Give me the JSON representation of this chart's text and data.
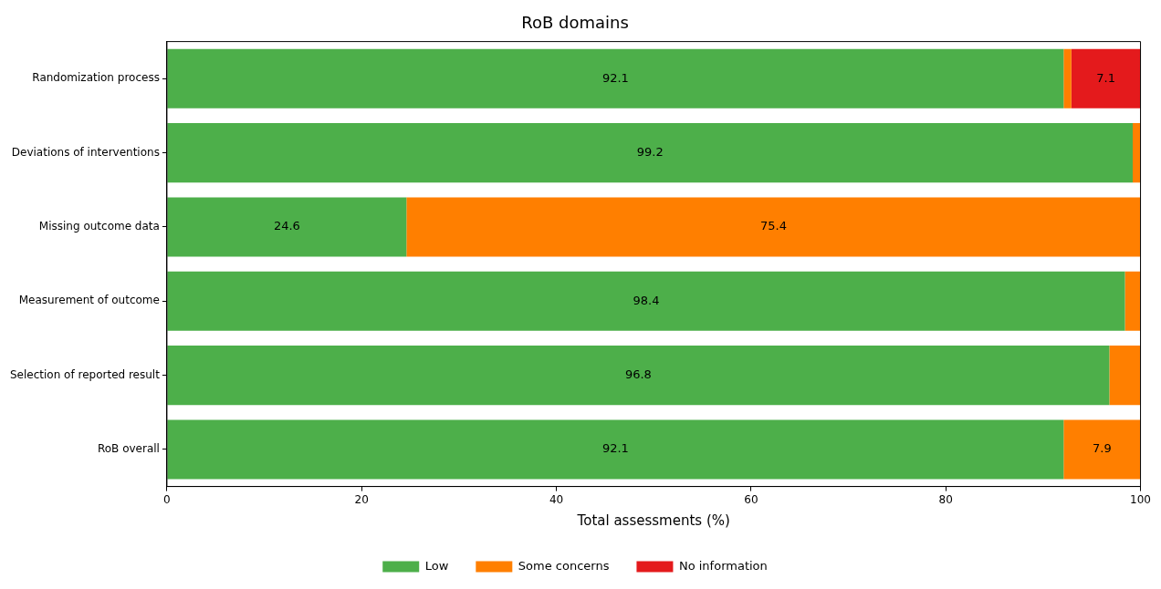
{
  "chart_data": {
    "type": "bar",
    "orientation": "horizontal",
    "stacked": true,
    "title": "RoB domains",
    "xlabel": "Total assessments (%)",
    "categories": [
      "Randomization process",
      "Deviations of interventions",
      "Missing outcome data",
      "Measurement of outcome",
      "Selection of reported result",
      "RoB overall"
    ],
    "series": [
      {
        "name": "Low",
        "color": "#4daf4a",
        "values": [
          92.1,
          99.2,
          24.6,
          98.4,
          96.8,
          92.1
        ],
        "value_labels": [
          "92.1",
          "99.2",
          "24.6",
          "98.4",
          "96.8",
          "92.1"
        ]
      },
      {
        "name": "Some concerns",
        "color": "#ff7f00",
        "values": [
          0.8,
          0.8,
          75.4,
          1.6,
          3.2,
          7.9
        ],
        "value_labels": [
          null,
          null,
          "75.4",
          null,
          null,
          "7.9"
        ]
      },
      {
        "name": "No information",
        "color": "#e41a1c",
        "values": [
          7.1,
          0,
          0,
          0,
          0,
          0
        ],
        "value_labels": [
          "7.1",
          null,
          null,
          null,
          null,
          null
        ]
      }
    ],
    "xlim": [
      0,
      100
    ],
    "xticks": [
      0,
      20,
      40,
      60,
      80,
      100
    ],
    "grid": false,
    "legend": "bottom"
  }
}
